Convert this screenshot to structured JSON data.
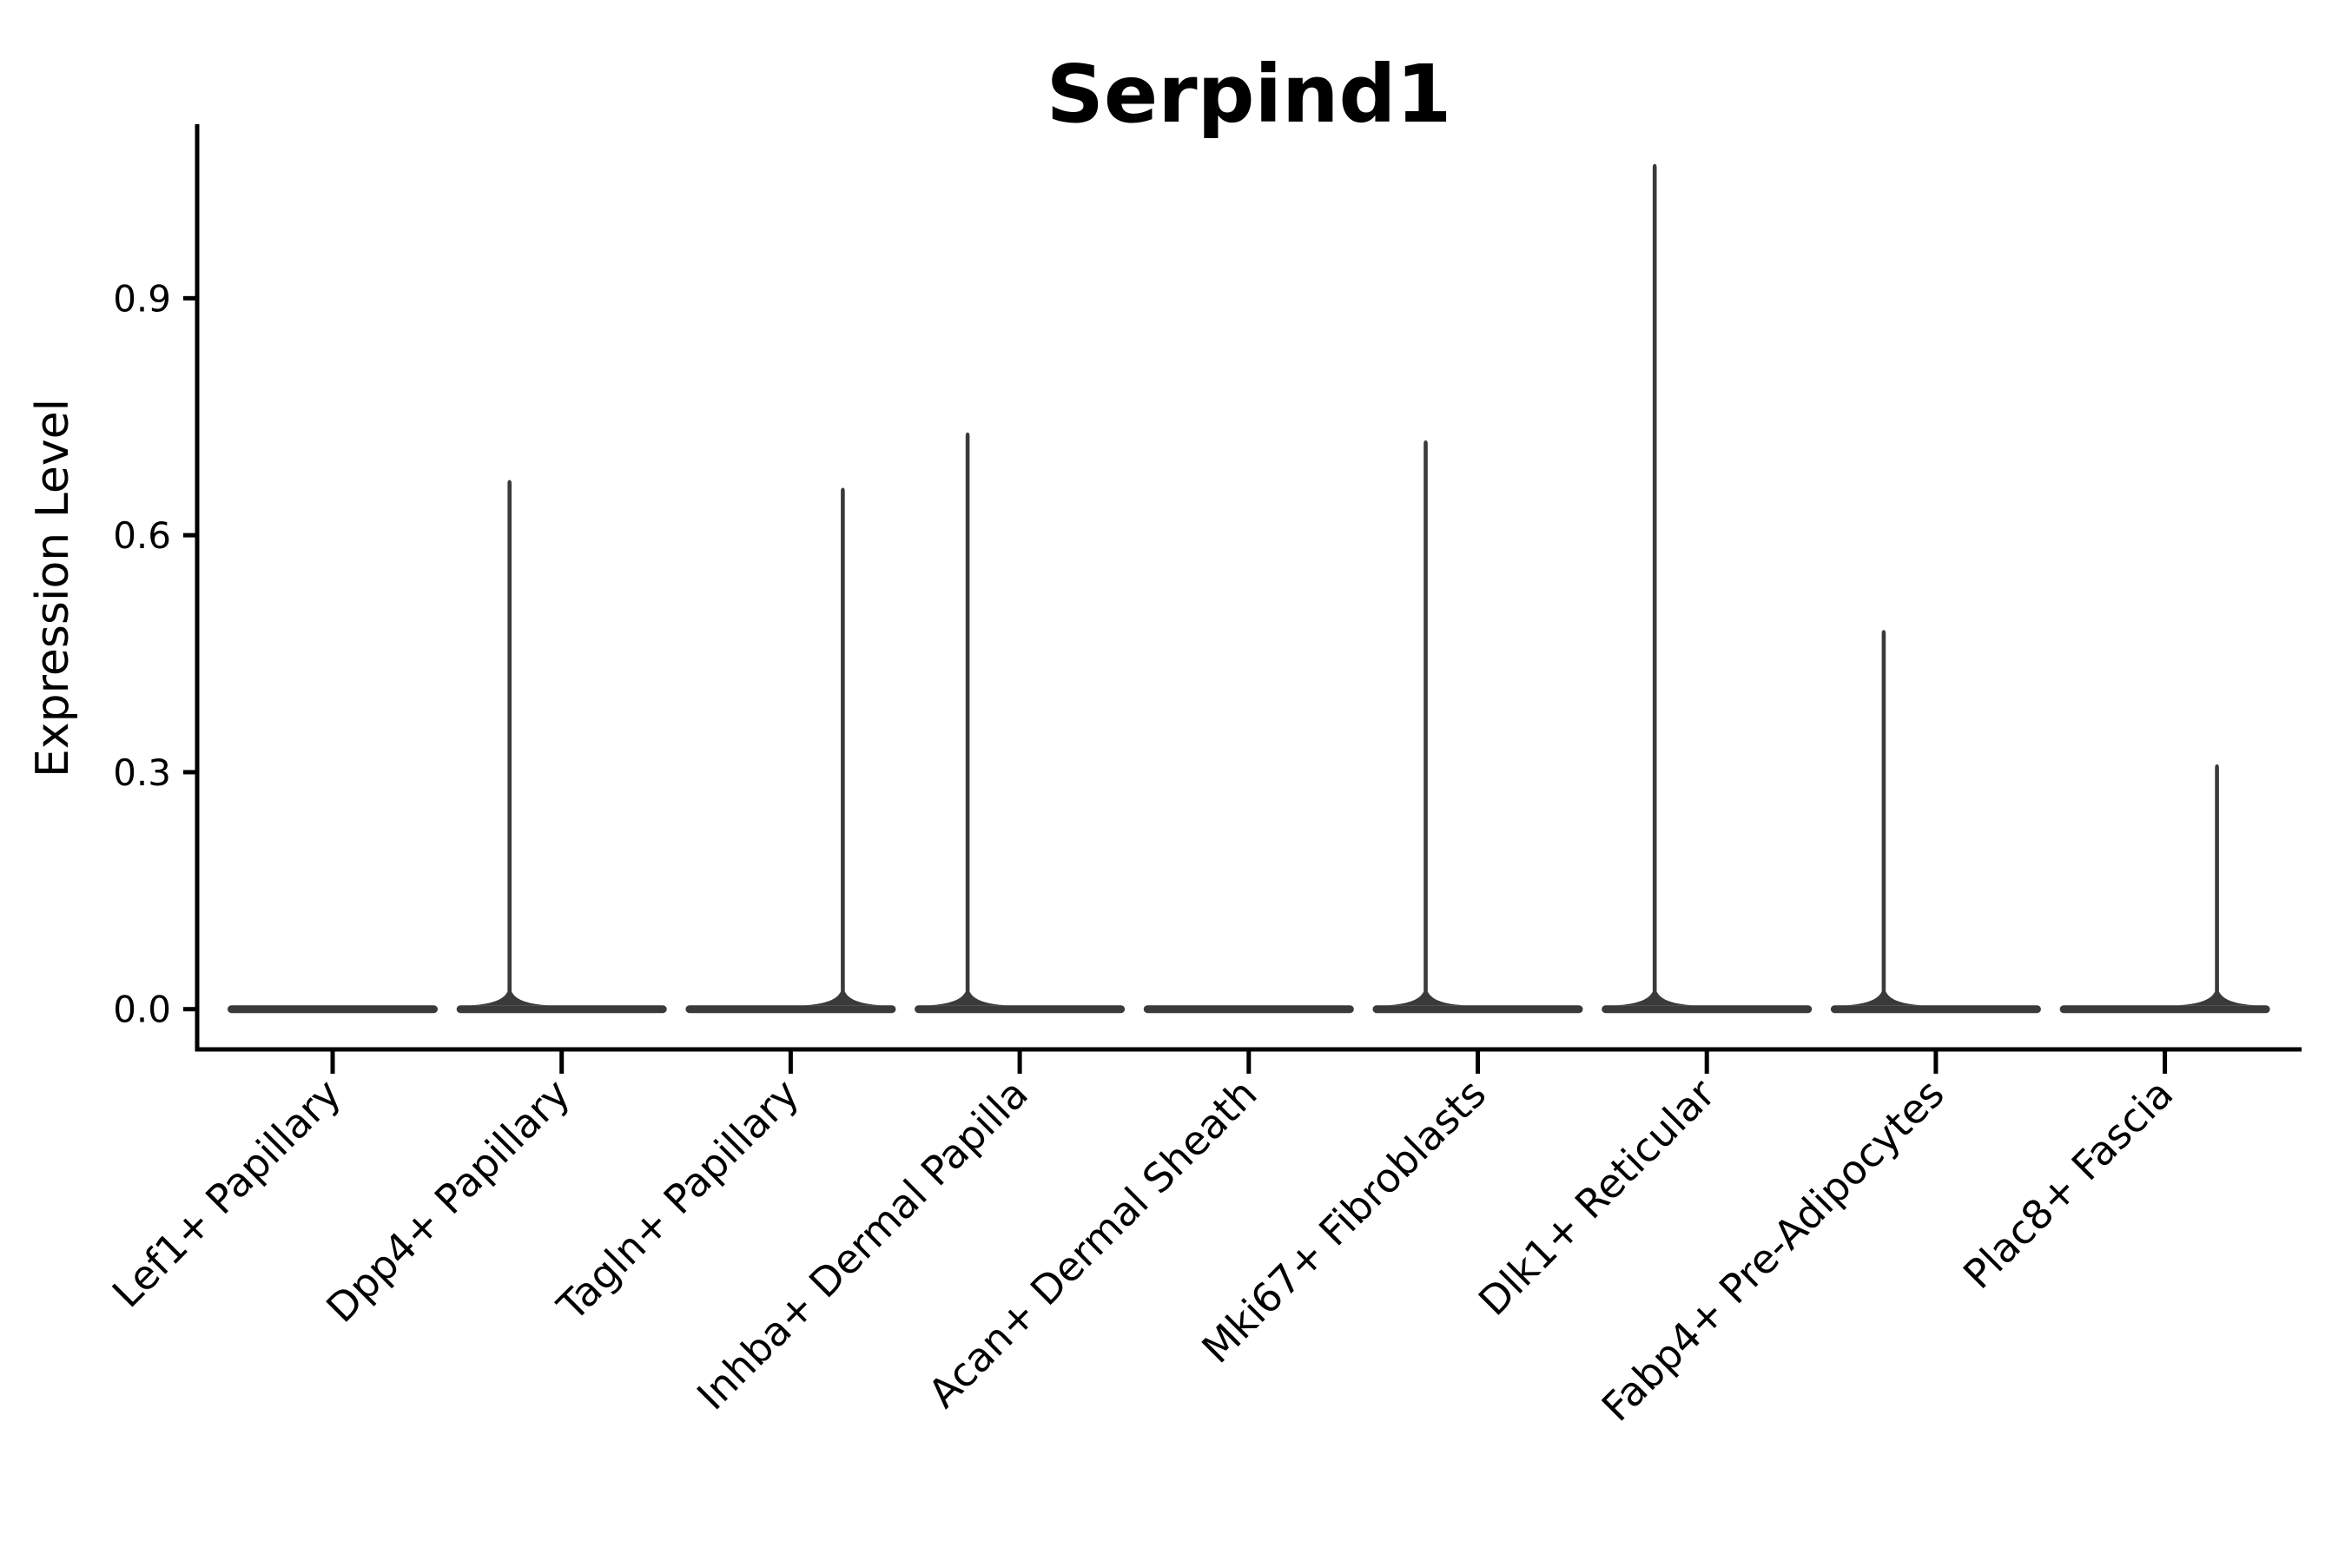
{
  "figure": {
    "title": "Serpind1",
    "background_color": "#FFFFFF"
  },
  "colors": {
    "violin_fill": "#3A3A3A",
    "axis_line": "#000000",
    "text": "#000000",
    "background": "#FFFFFF"
  },
  "chart_data": {
    "type": "violin",
    "title": "Serpind1",
    "xlabel": "",
    "ylabel": "Expression Level",
    "yticks": [
      "0.0",
      "0.3",
      "0.6",
      "0.9"
    ],
    "ylim": [
      -0.05,
      1.12
    ],
    "grid": false,
    "legend_position": "none",
    "categories": [
      "Lef1+ Papillary",
      "Dpp4+ Papillary",
      "Tagln+ Papillary",
      "Inhba+ Dermal Papilla",
      "Acan+ Dermal Sheath",
      "Mki67+ Fibroblasts",
      "Dlk1+ Reticular",
      "Fabp4+ Pre-Adipocytes",
      "Plac8+ Fascia"
    ],
    "series": [
      {
        "name": "Lef1+ Papillary",
        "bulk_at": 0.0,
        "max_expression": 0.0,
        "spike_side": null
      },
      {
        "name": "Dpp4+ Papillary",
        "bulk_at": 0.0,
        "max_expression": 0.67,
        "spike_side": "left"
      },
      {
        "name": "Tagln+ Papillary",
        "bulk_at": 0.0,
        "max_expression": 0.66,
        "spike_side": "right"
      },
      {
        "name": "Inhba+ Dermal Papilla",
        "bulk_at": 0.0,
        "max_expression": 0.73,
        "spike_side": "left"
      },
      {
        "name": "Acan+ Dermal Sheath",
        "bulk_at": 0.0,
        "max_expression": 0.0,
        "spike_side": null
      },
      {
        "name": "Mki67+ Fibroblasts",
        "bulk_at": 0.0,
        "max_expression": 0.72,
        "spike_side": "left"
      },
      {
        "name": "Dlk1+ Reticular",
        "bulk_at": 0.0,
        "max_expression": 1.07,
        "spike_side": "left"
      },
      {
        "name": "Fabp4+ Pre-Adipocytes",
        "bulk_at": 0.0,
        "max_expression": 0.48,
        "spike_side": "left"
      },
      {
        "name": "Plac8+ Fascia",
        "bulk_at": 0.0,
        "max_expression": 0.31,
        "spike_side": "right"
      }
    ],
    "annotation": "Violin plot; nearly all expression mass sits at 0 in every cluster, with a thin density spike rising to the maximum expressing cell where present."
  }
}
